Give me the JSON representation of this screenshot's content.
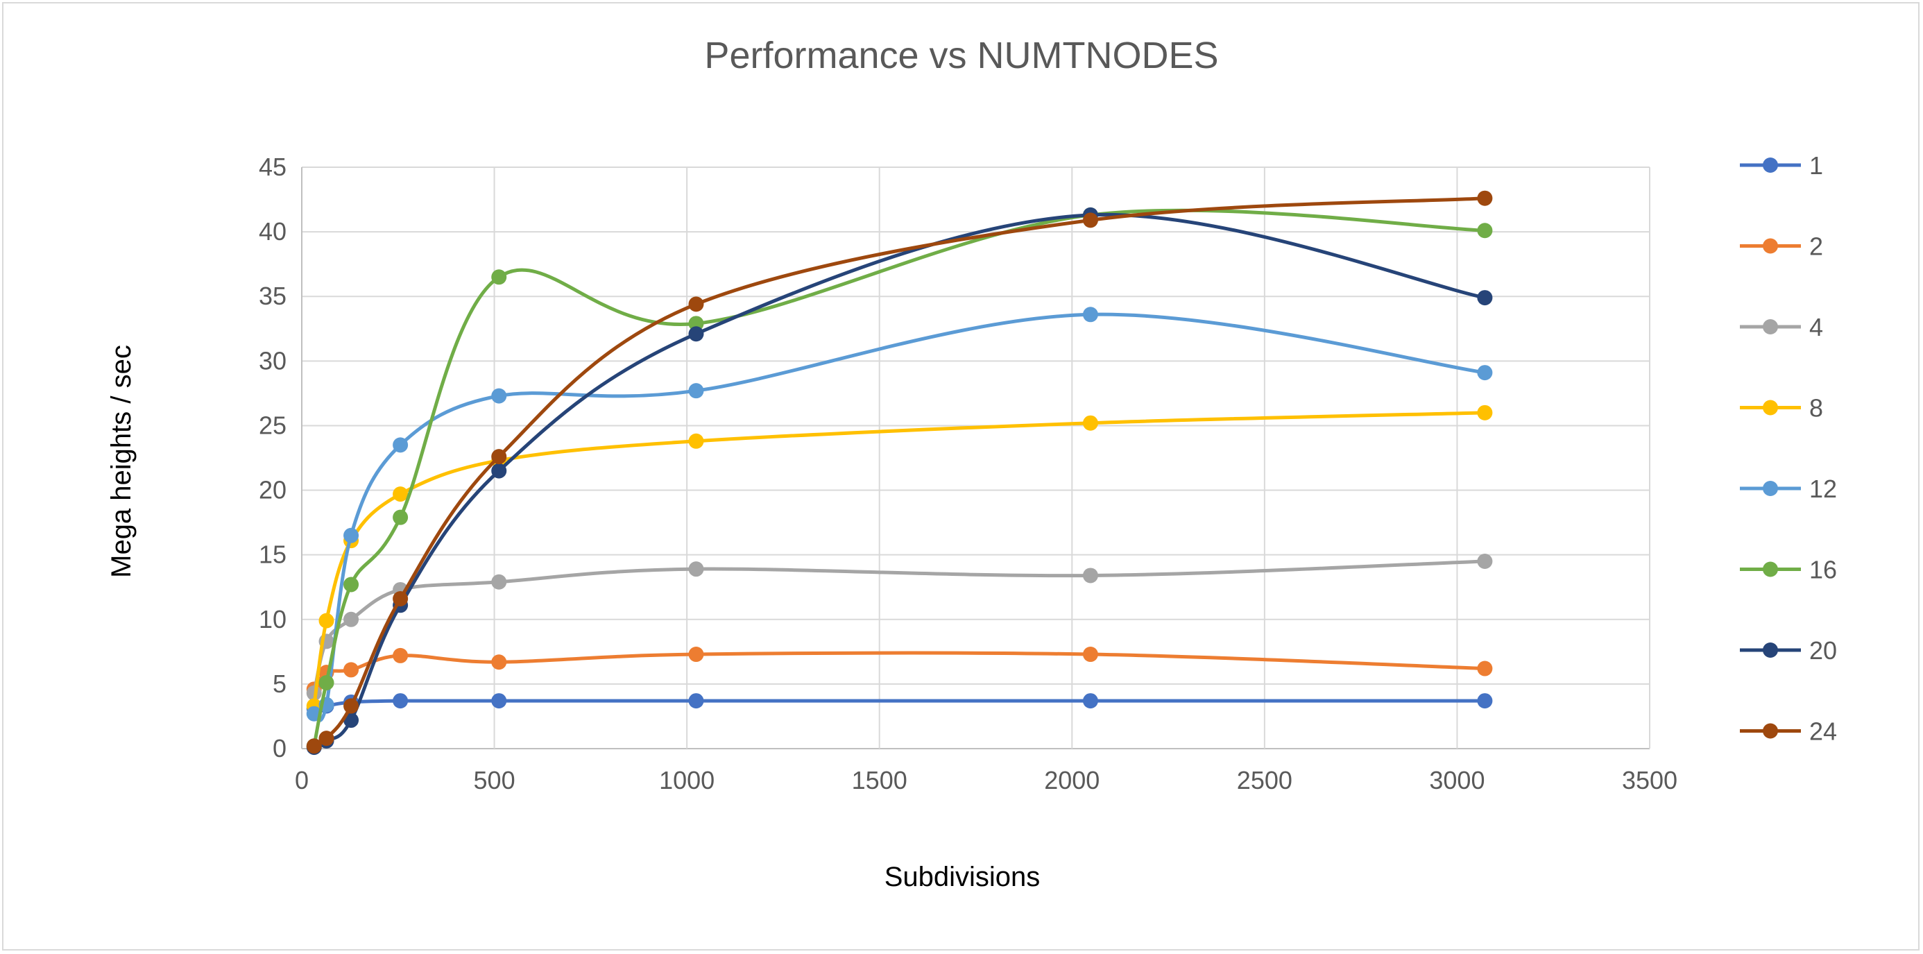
{
  "chart_data": {
    "type": "line",
    "title": "Performance vs NUMTNODES",
    "xlabel": "Subdivisions",
    "ylabel": "Mega heights / sec",
    "xlim": [
      0,
      3500
    ],
    "ylim": [
      0,
      45
    ],
    "xticks": [
      0,
      500,
      1000,
      1500,
      2000,
      2500,
      3000,
      3500
    ],
    "yticks": [
      0,
      5,
      10,
      15,
      20,
      25,
      30,
      35,
      40,
      45
    ],
    "grid": true,
    "smooth": true,
    "legend_position": "right",
    "x": [
      32,
      64,
      128,
      256,
      512,
      1024,
      2048,
      3072
    ],
    "series": [
      {
        "name": "1",
        "color": "#4472C4",
        "values": [
          3.1,
          3.3,
          3.6,
          3.7,
          3.7,
          3.7,
          3.7,
          3.7
        ]
      },
      {
        "name": "2",
        "color": "#ED7D31",
        "values": [
          4.6,
          5.9,
          6.1,
          7.2,
          6.7,
          7.3,
          7.3,
          6.2
        ]
      },
      {
        "name": "4",
        "color": "#A5A5A5",
        "values": [
          4.3,
          8.3,
          10.0,
          12.3,
          12.9,
          13.9,
          13.4,
          14.5
        ]
      },
      {
        "name": "8",
        "color": "#FFC000",
        "values": [
          3.3,
          9.9,
          16.1,
          19.7,
          22.3,
          23.8,
          25.2,
          26.0
        ]
      },
      {
        "name": "12",
        "color": "#5B9BD5",
        "values": [
          2.7,
          3.4,
          16.5,
          23.5,
          27.3,
          27.7,
          33.6,
          29.1
        ]
      },
      {
        "name": "16",
        "color": "#70AD47",
        "values": [
          0.2,
          5.1,
          12.7,
          17.9,
          36.5,
          32.9,
          41.3,
          40.1
        ]
      },
      {
        "name": "20",
        "color": "#264478",
        "values": [
          0.1,
          0.6,
          2.2,
          11.1,
          21.5,
          32.1,
          41.3,
          34.9
        ]
      },
      {
        "name": "24",
        "color": "#9E480E",
        "values": [
          0.2,
          0.8,
          3.3,
          11.6,
          22.6,
          34.4,
          40.9,
          42.6
        ]
      }
    ]
  }
}
